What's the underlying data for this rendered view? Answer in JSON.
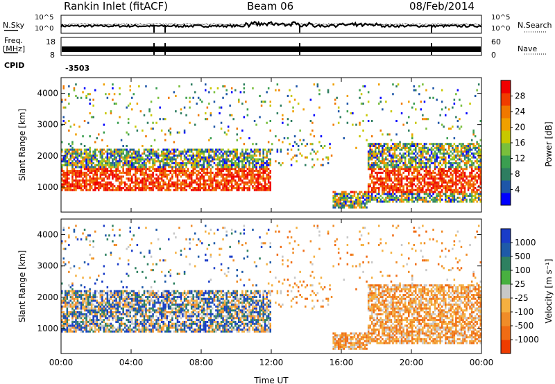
{
  "header": {
    "station": "Rankin Inlet (fitACF)",
    "beam": "Beam 06",
    "date": "08/Feb/2014"
  },
  "top_panel": {
    "left_label": "N.Sky",
    "right_label": "N.Search",
    "left_ticks": [
      "10^5",
      "10^0"
    ],
    "right_ticks": [
      "10^5",
      "10^0"
    ]
  },
  "freq_panel": {
    "left_label_1": "Freq.",
    "left_label_2": "[MHz]",
    "right_label": "Nave",
    "left_ticks": [
      "18",
      "8"
    ],
    "right_ticks": [
      "60",
      "0"
    ]
  },
  "cpid": {
    "label": "CPID",
    "value": "-3503"
  },
  "colors": {
    "power_scale": [
      "#0000ff",
      "#1e56a8",
      "#2e7d60",
      "#3a9e50",
      "#79bf3c",
      "#c8c800",
      "#f0a000",
      "#f07800",
      "#f03c00",
      "#f00000"
    ],
    "velocity_scale": [
      "#1a3cc8",
      "#1e5aa8",
      "#2e8060",
      "#48b040",
      "#c8c8c8",
      "#f5b040",
      "#f08c28",
      "#f06c14",
      "#ee3c00"
    ]
  },
  "chart_data": [
    {
      "type": "heatmap",
      "title": "Power",
      "ylabel": "Slant Range [km]",
      "ylim": [
        200,
        4500
      ],
      "yticks": [
        "1000",
        "2000",
        "3000",
        "4000"
      ],
      "colorbar": {
        "label": "Power [dB]",
        "range": [
          0,
          32
        ],
        "tick_labels": [
          "4",
          "8",
          "12",
          "16",
          "20",
          "24",
          "28"
        ]
      }
    },
    {
      "type": "heatmap",
      "title": "Velocity",
      "ylabel": "Slant Range [km]",
      "ylim": [
        200,
        4500
      ],
      "yticks": [
        "1000",
        "2000",
        "3000",
        "4000"
      ],
      "colorbar": {
        "label": "Velocity [m s⁻¹]",
        "tick_labels": [
          "1000",
          "500",
          "100",
          "25",
          "-25",
          "-100",
          "-500",
          "-1000"
        ]
      }
    }
  ],
  "x_axis": {
    "label": "Time UT",
    "tick_labels": [
      "00:00",
      "04:00",
      "08:00",
      "12:00",
      "16:00",
      "20:00",
      "00:00"
    ]
  }
}
